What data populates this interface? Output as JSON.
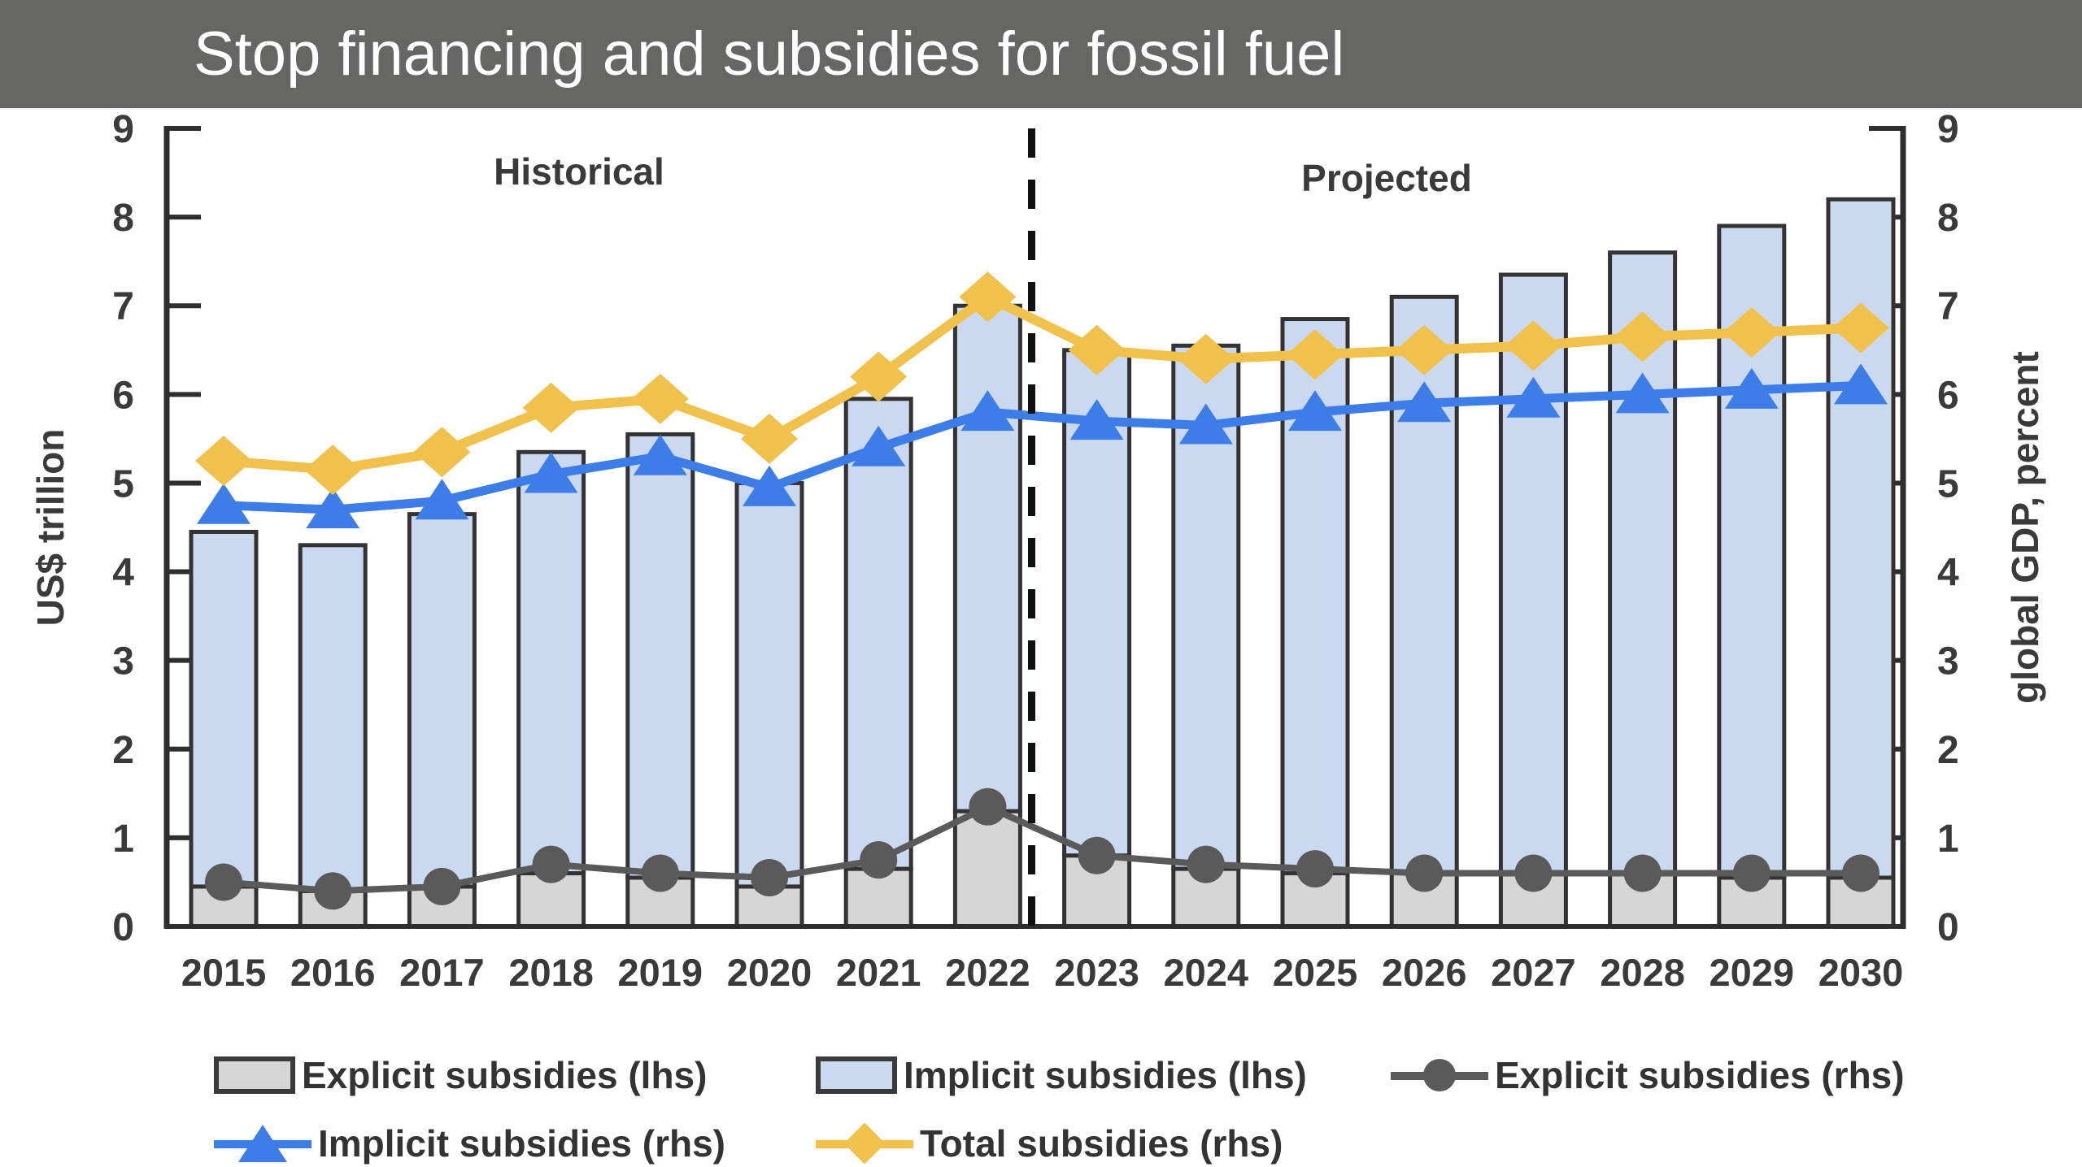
{
  "title_bar": {
    "title": "Stop financing and subsidies for fossil fuel",
    "background": "#666665",
    "text_color": "#ffffff"
  },
  "chart_data": {
    "type": "bar",
    "subtype": "stacked-bars-with-dual-axis-lines",
    "categories": [
      "2015",
      "2016",
      "2017",
      "2018",
      "2019",
      "2020",
      "2021",
      "2022",
      "2023",
      "2024",
      "2025",
      "2026",
      "2027",
      "2028",
      "2029",
      "2030"
    ],
    "series": [
      {
        "name": "Explicit subsidies (lhs)",
        "type": "bar-segment",
        "axis": "left",
        "marker": "rect",
        "color": "#d6d6d6",
        "values": [
          0.45,
          0.4,
          0.45,
          0.6,
          0.55,
          0.45,
          0.65,
          1.3,
          0.8,
          0.65,
          0.6,
          0.6,
          0.6,
          0.6,
          0.55,
          0.55
        ]
      },
      {
        "name": "Implicit subsidies (lhs)",
        "type": "bar-segment",
        "axis": "left",
        "marker": "rect",
        "color": "#cbd9f0",
        "values": [
          4.0,
          3.9,
          4.2,
          4.75,
          5.0,
          4.55,
          5.3,
          5.7,
          5.7,
          5.9,
          6.25,
          6.5,
          6.75,
          7.0,
          7.35,
          7.65
        ]
      },
      {
        "name": "Explicit subsidies (rhs)",
        "type": "line",
        "axis": "right",
        "marker": "circle",
        "color": "#5a5a5a",
        "values": [
          0.5,
          0.4,
          0.45,
          0.7,
          0.6,
          0.55,
          0.75,
          1.35,
          0.8,
          0.7,
          0.65,
          0.6,
          0.6,
          0.6,
          0.6,
          0.6
        ]
      },
      {
        "name": "Implicit subsidies (rhs)",
        "type": "line",
        "axis": "right",
        "marker": "triangle",
        "color": "#3d7de8",
        "values": [
          4.75,
          4.7,
          4.8,
          5.1,
          5.3,
          4.95,
          5.4,
          5.8,
          5.7,
          5.65,
          5.8,
          5.9,
          5.95,
          6.0,
          6.05,
          6.1
        ]
      },
      {
        "name": "Total subsidies (rhs)",
        "type": "line",
        "axis": "right",
        "marker": "diamond",
        "color": "#f0c24b",
        "values": [
          5.25,
          5.15,
          5.35,
          5.85,
          5.95,
          5.5,
          6.2,
          7.1,
          6.5,
          6.4,
          6.45,
          6.5,
          6.55,
          6.65,
          6.7,
          6.75
        ]
      }
    ],
    "left_axis": {
      "label": "US$ trillion",
      "min": 0,
      "max": 9,
      "ticks": [
        "0",
        "1",
        "2",
        "3",
        "4",
        "5",
        "6",
        "7",
        "8",
        "9"
      ]
    },
    "right_axis": {
      "label": "global GDP, percent",
      "min": 0,
      "max": 9,
      "ticks": [
        "0",
        "1",
        "2",
        "3",
        "4",
        "5",
        "6",
        "7",
        "8",
        "9"
      ]
    },
    "annotations": {
      "historical_label": "Historical",
      "projected_label": "Projected",
      "divider_between": [
        "2022",
        "2023"
      ],
      "divider_style": "dashed-black"
    },
    "bar_total_lhs_reference": [
      4.45,
      4.3,
      4.65,
      5.35,
      5.55,
      5.0,
      5.95,
      7.0,
      6.5,
      6.55,
      6.85,
      7.1,
      7.35,
      7.6,
      7.9,
      8.2
    ],
    "axis_text_color": "#3a3a3a",
    "bar_border_color": "#333333",
    "grid": "off",
    "legend_position": "bottom"
  },
  "legend": {
    "rows": [
      [
        "Explicit subsidies (lhs)",
        "Implicit subsidies (lhs)",
        "Explicit subsidies (rhs)"
      ],
      [
        "Implicit subsidies (rhs)",
        "Total subsidies (rhs)"
      ]
    ]
  }
}
